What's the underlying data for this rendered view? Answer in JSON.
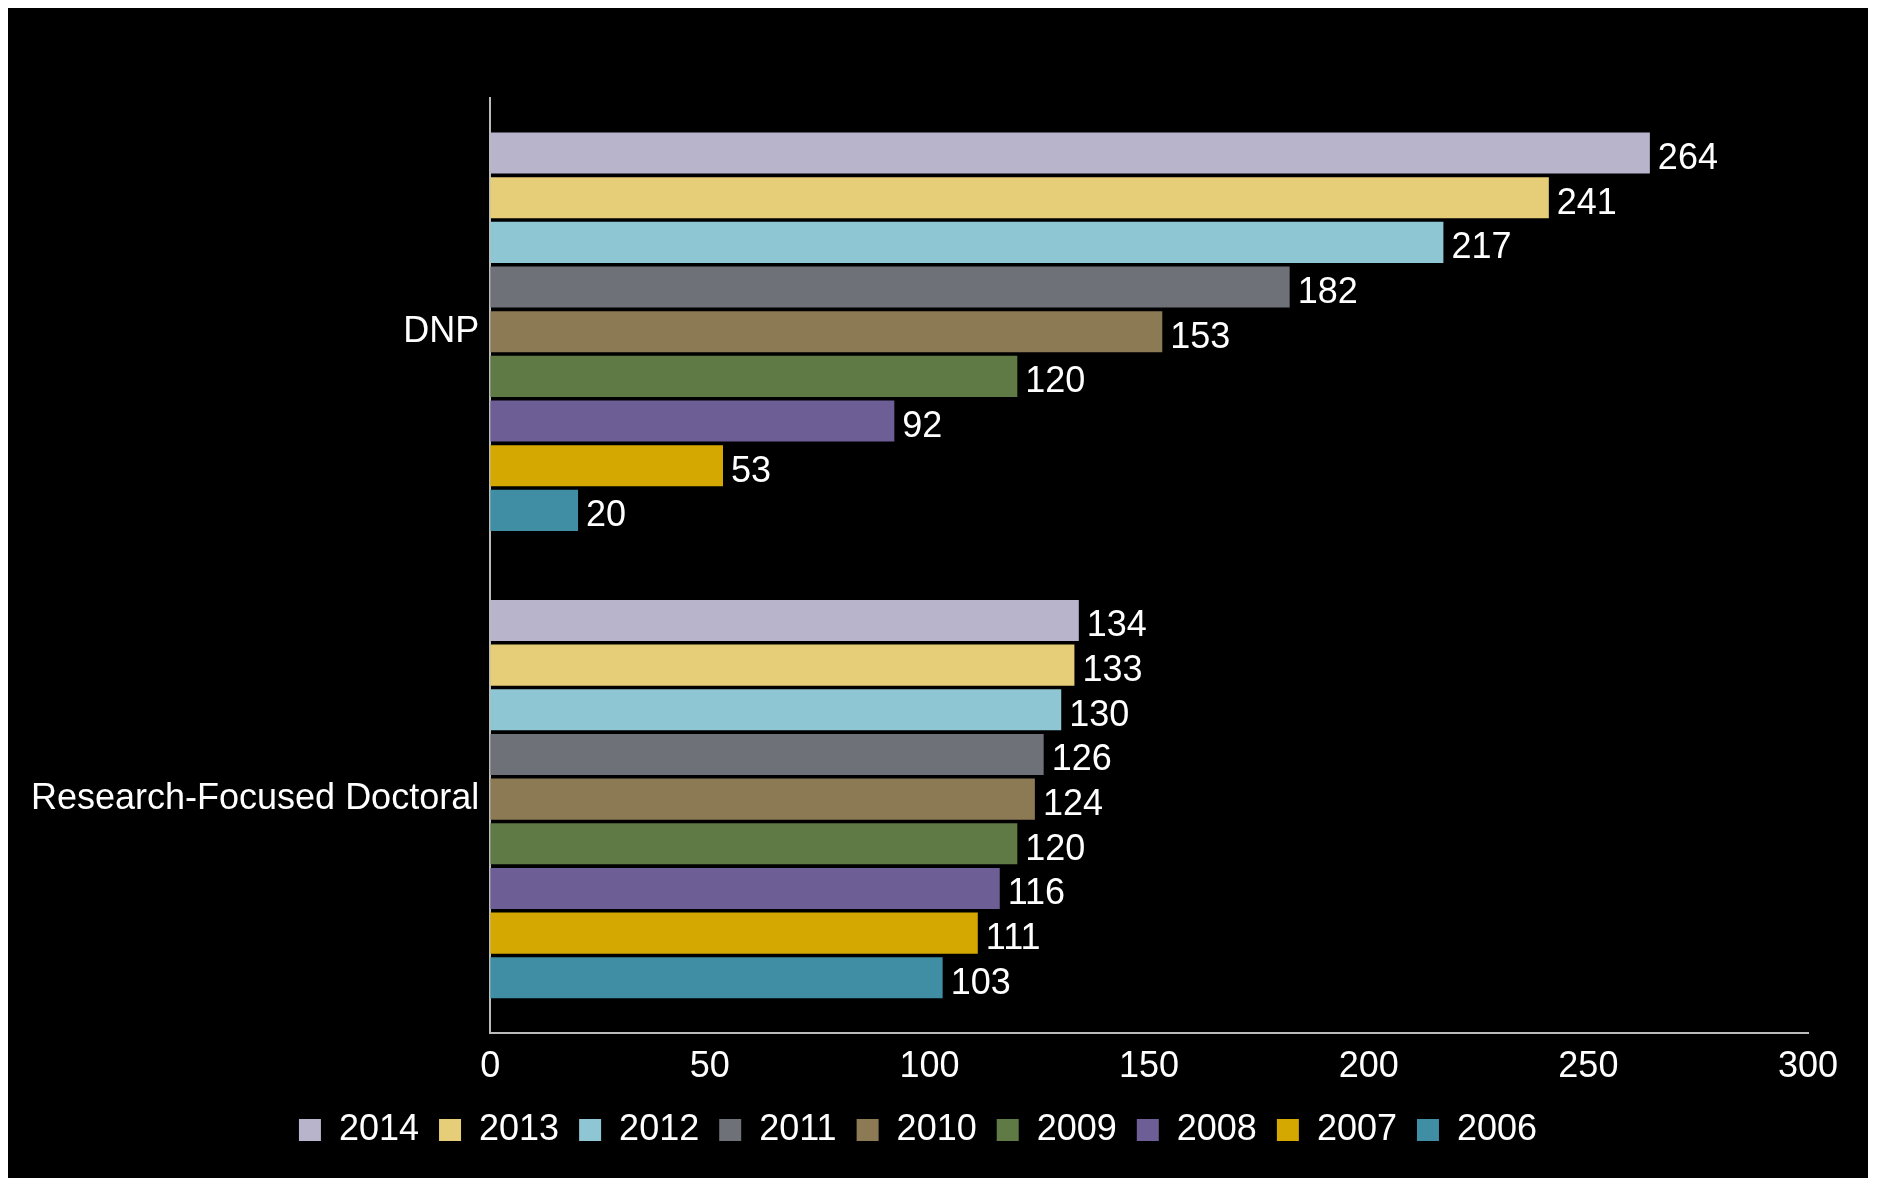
{
  "chart_data": {
    "type": "bar",
    "orientation": "horizontal",
    "categories": [
      "DNP",
      "Research-Focused Doctoral"
    ],
    "series": [
      {
        "name": "2014",
        "color": "#b8b4cc",
        "values": [
          264,
          134
        ]
      },
      {
        "name": "2013",
        "color": "#e6cd78",
        "values": [
          241,
          133
        ]
      },
      {
        "name": "2012",
        "color": "#8fc6d4",
        "values": [
          217,
          130
        ]
      },
      {
        "name": "2011",
        "color": "#6e7178",
        "values": [
          182,
          126
        ]
      },
      {
        "name": "2010",
        "color": "#8c7a55",
        "values": [
          153,
          124
        ]
      },
      {
        "name": "2009",
        "color": "#5f7a45",
        "values": [
          120,
          120
        ]
      },
      {
        "name": "2008",
        "color": "#6d5f96",
        "values": [
          92,
          116
        ]
      },
      {
        "name": "2007",
        "color": "#d4a800",
        "values": [
          53,
          111
        ]
      },
      {
        "name": "2006",
        "color": "#3f8ea3",
        "values": [
          20,
          103
        ]
      }
    ],
    "xlim": [
      0,
      300
    ],
    "xticks": [
      0,
      50,
      100,
      150,
      200,
      250,
      300
    ],
    "grid": false,
    "legend": "bottom",
    "data_labels": true
  }
}
